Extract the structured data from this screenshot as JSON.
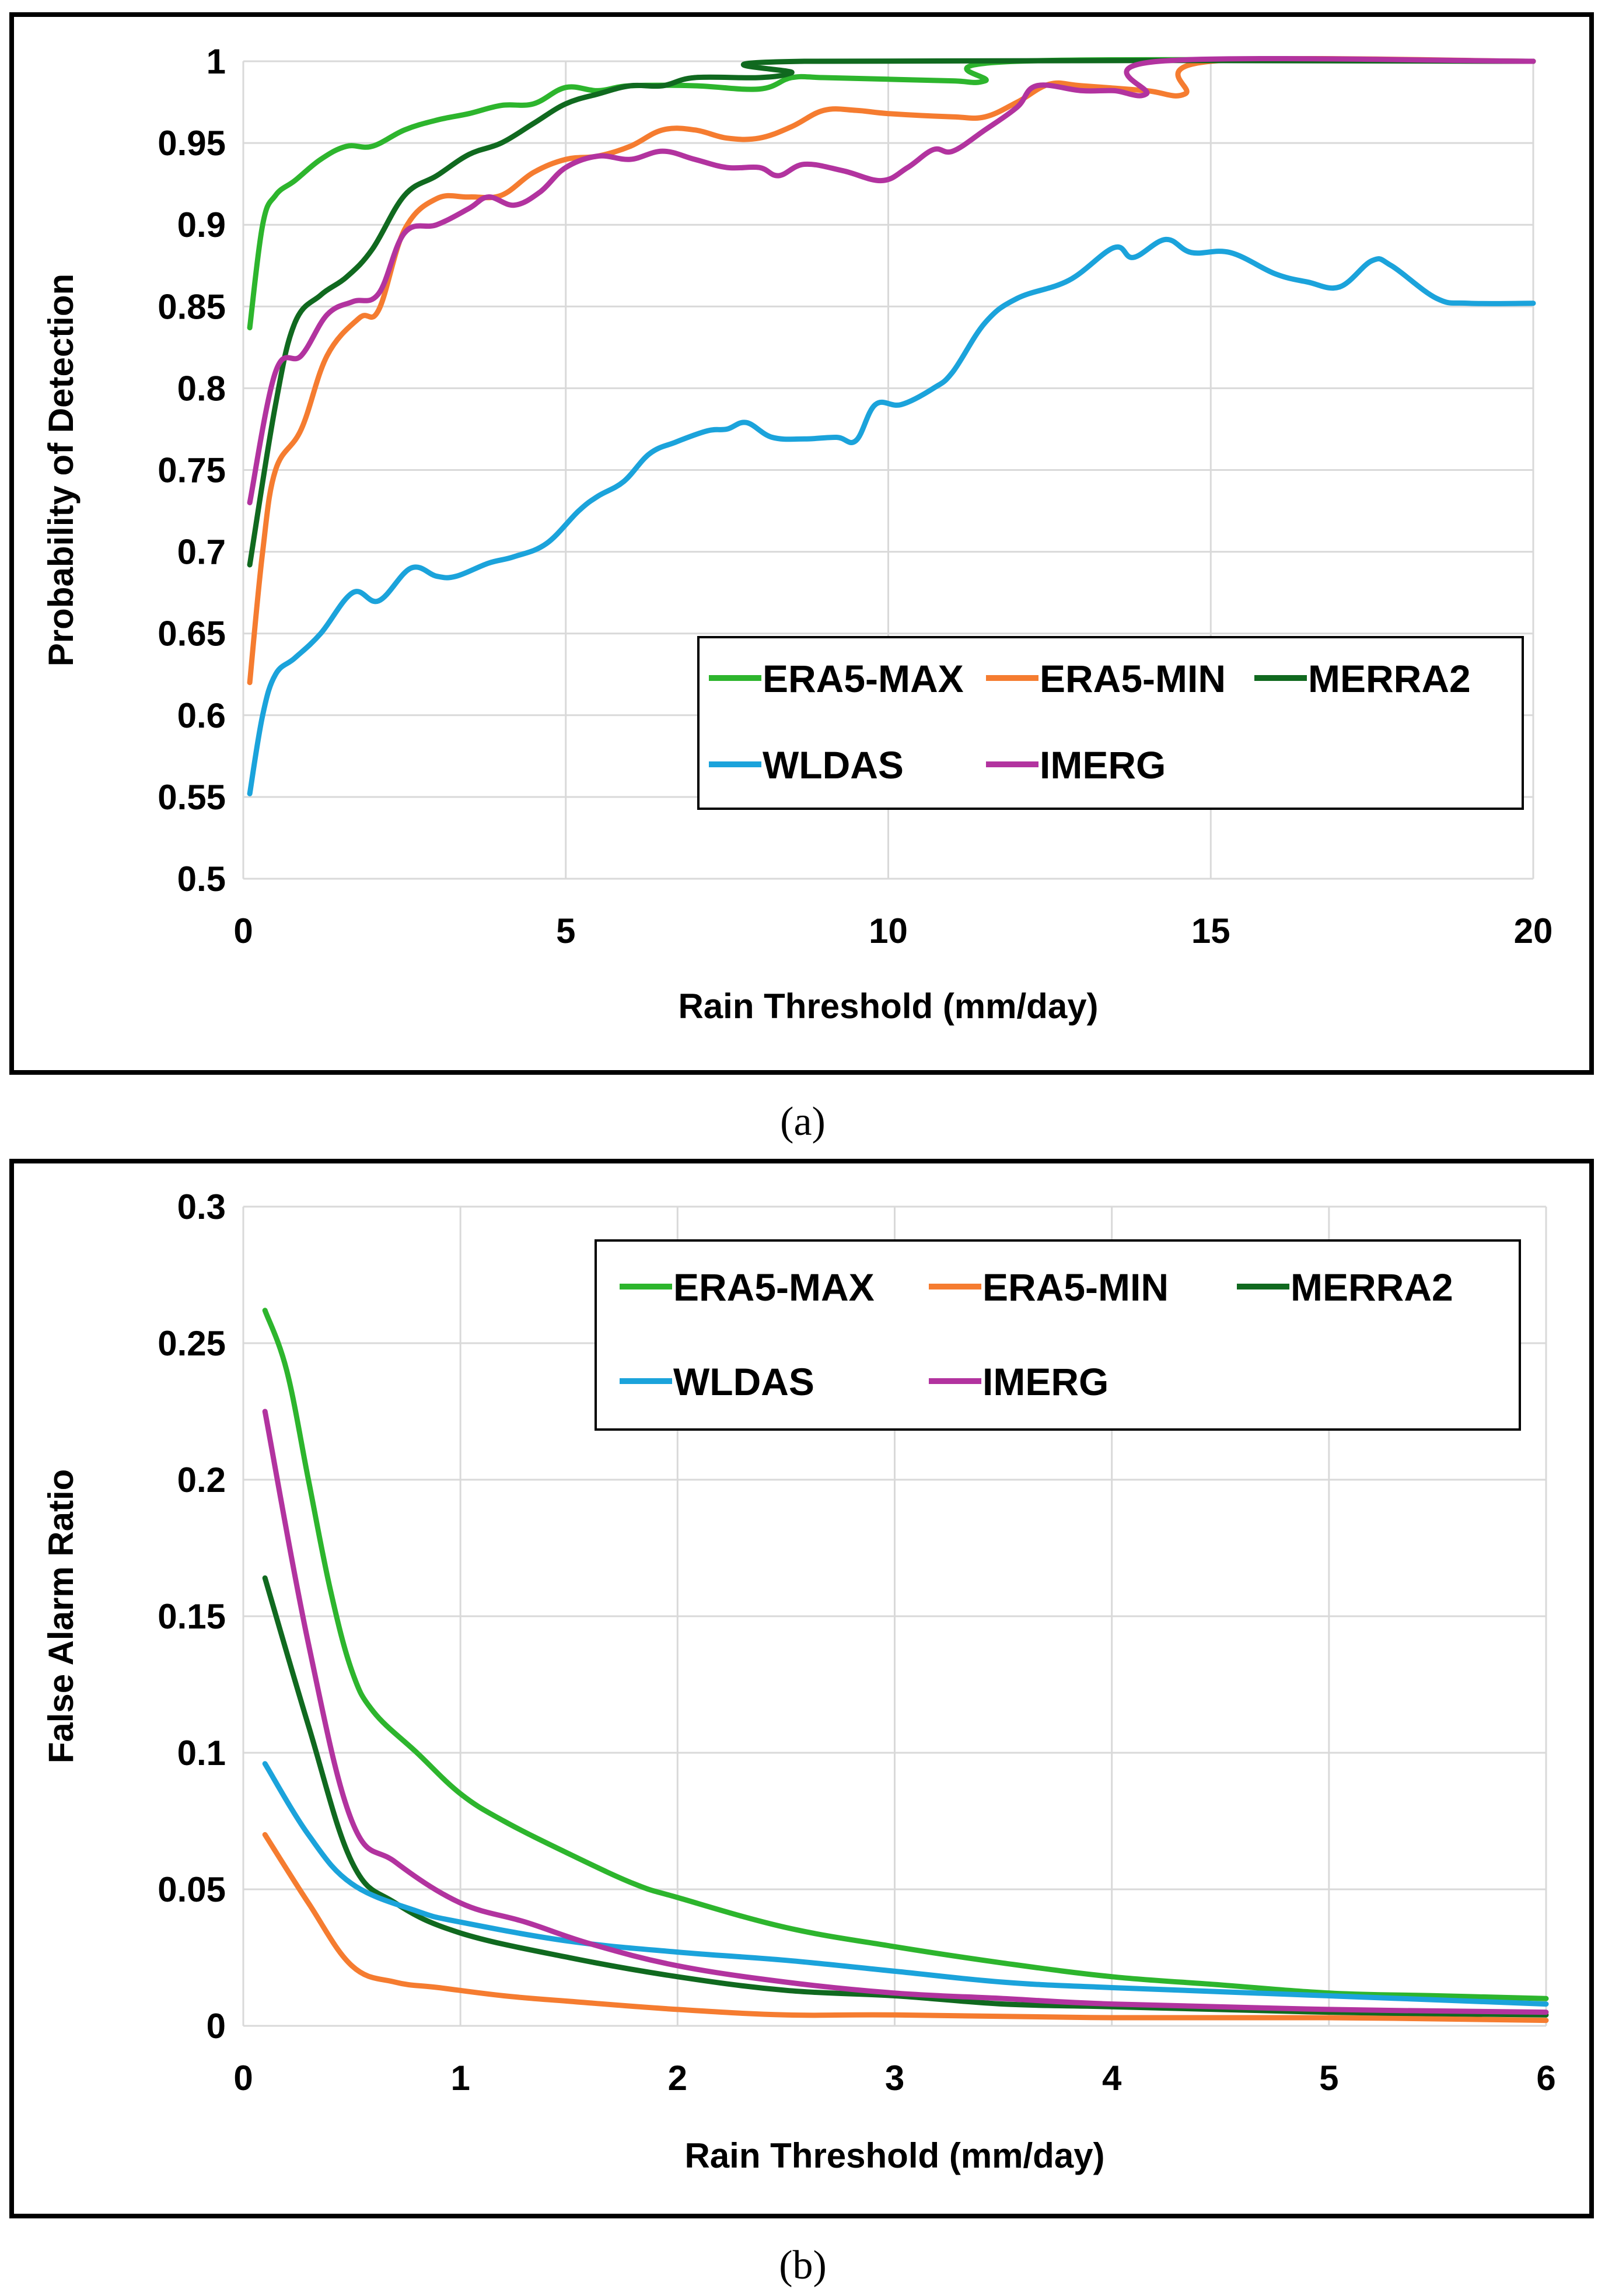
{
  "chart_data": [
    {
      "id": "a",
      "type": "line",
      "caption": "(a)",
      "title": "",
      "xlabel": "Rain Threshold (mm/day)",
      "ylabel": "Probability of Detection",
      "xlim": [
        0,
        20
      ],
      "ylim": [
        0.5,
        1
      ],
      "xticks": [
        "0",
        "5",
        "10",
        "15",
        "20"
      ],
      "xtick_values": [
        0,
        5,
        10,
        15,
        20
      ],
      "yticks": [
        "0.5",
        "0.55",
        "0.6",
        "0.65",
        "0.7",
        "0.75",
        "0.8",
        "0.85",
        "0.9",
        "0.95",
        "1"
      ],
      "ytick_values": [
        0.5,
        0.55,
        0.6,
        0.65,
        0.7,
        0.75,
        0.8,
        0.85,
        0.9,
        0.95,
        1
      ],
      "grid": true,
      "legend_position": "bottom-right",
      "series": [
        {
          "name": "ERA5-MAX",
          "color": "#2db52d",
          "points": [
            [
              0.1,
              0.837
            ],
            [
              0.3,
              0.9
            ],
            [
              0.5,
              0.918
            ],
            [
              0.8,
              0.927
            ],
            [
              1.2,
              0.94
            ],
            [
              1.6,
              0.948
            ],
            [
              2.0,
              0.948
            ],
            [
              2.5,
              0.958
            ],
            [
              3,
              0.964
            ],
            [
              3.5,
              0.968
            ],
            [
              4,
              0.973
            ],
            [
              4.5,
              0.974
            ],
            [
              5,
              0.984
            ],
            [
              5.5,
              0.982
            ],
            [
              6,
              0.985
            ],
            [
              7,
              0.985
            ],
            [
              8,
              0.983
            ],
            [
              8.5,
              0.99
            ],
            [
              9,
              0.99
            ],
            [
              10,
              0.989
            ],
            [
              11,
              0.988
            ],
            [
              11.5,
              0.988
            ],
            [
              12,
              1
            ],
            [
              20,
              1
            ]
          ]
        },
        {
          "name": "ERA5-MIN",
          "color": "#f57c30",
          "points": [
            [
              0.1,
              0.62
            ],
            [
              0.3,
              0.7
            ],
            [
              0.5,
              0.75
            ],
            [
              0.9,
              0.775
            ],
            [
              1.3,
              0.82
            ],
            [
              1.8,
              0.843
            ],
            [
              2.1,
              0.848
            ],
            [
              2.5,
              0.897
            ],
            [
              3,
              0.916
            ],
            [
              3.5,
              0.917
            ],
            [
              4,
              0.918
            ],
            [
              4.5,
              0.932
            ],
            [
              5,
              0.94
            ],
            [
              5.5,
              0.942
            ],
            [
              6,
              0.948
            ],
            [
              6.5,
              0.958
            ],
            [
              7,
              0.958
            ],
            [
              7.5,
              0.953
            ],
            [
              8,
              0.953
            ],
            [
              8.5,
              0.96
            ],
            [
              9,
              0.97
            ],
            [
              9.5,
              0.97
            ],
            [
              10,
              0.968
            ],
            [
              11,
              0.966
            ],
            [
              11.5,
              0.966
            ],
            [
              12,
              0.975
            ],
            [
              12.5,
              0.986
            ],
            [
              13,
              0.985
            ],
            [
              14,
              0.982
            ],
            [
              14.6,
              0.98
            ],
            [
              15,
              1
            ],
            [
              20,
              1
            ]
          ]
        },
        {
          "name": "MERRA2",
          "color": "#10691f",
          "points": [
            [
              0.1,
              0.692
            ],
            [
              0.5,
              0.79
            ],
            [
              0.8,
              0.84
            ],
            [
              1.2,
              0.857
            ],
            [
              1.6,
              0.868
            ],
            [
              2,
              0.885
            ],
            [
              2.5,
              0.918
            ],
            [
              3,
              0.93
            ],
            [
              3.5,
              0.943
            ],
            [
              4,
              0.95
            ],
            [
              4.5,
              0.962
            ],
            [
              5,
              0.974
            ],
            [
              5.5,
              0.98
            ],
            [
              6,
              0.985
            ],
            [
              6.5,
              0.985
            ],
            [
              7,
              0.99
            ],
            [
              8,
              0.99
            ],
            [
              8.5,
              0.993
            ],
            [
              8.7,
              1
            ],
            [
              20,
              1
            ]
          ]
        },
        {
          "name": "WLDAS",
          "color": "#1ba3db",
          "points": [
            [
              0.1,
              0.552
            ],
            [
              0.3,
              0.6
            ],
            [
              0.5,
              0.625
            ],
            [
              0.8,
              0.635
            ],
            [
              1.2,
              0.65
            ],
            [
              1.7,
              0.675
            ],
            [
              2.1,
              0.67
            ],
            [
              2.6,
              0.69
            ],
            [
              3,
              0.685
            ],
            [
              3.3,
              0.685
            ],
            [
              3.8,
              0.693
            ],
            [
              4.2,
              0.697
            ],
            [
              4.7,
              0.705
            ],
            [
              5.2,
              0.725
            ],
            [
              5.5,
              0.734
            ],
            [
              5.9,
              0.743
            ],
            [
              6.3,
              0.76
            ],
            [
              6.7,
              0.767
            ],
            [
              7.2,
              0.774
            ],
            [
              7.5,
              0.775
            ],
            [
              7.8,
              0.779
            ],
            [
              8.2,
              0.77
            ],
            [
              8.7,
              0.769
            ],
            [
              9.2,
              0.77
            ],
            [
              9.5,
              0.768
            ],
            [
              9.8,
              0.79
            ],
            [
              10.2,
              0.79
            ],
            [
              10.7,
              0.8
            ],
            [
              11,
              0.81
            ],
            [
              11.5,
              0.84
            ],
            [
              12,
              0.855
            ],
            [
              12.8,
              0.866
            ],
            [
              13.5,
              0.886
            ],
            [
              13.8,
              0.88
            ],
            [
              14.3,
              0.891
            ],
            [
              14.7,
              0.883
            ],
            [
              15.3,
              0.883
            ],
            [
              16,
              0.87
            ],
            [
              16.5,
              0.865
            ],
            [
              17,
              0.862
            ],
            [
              17.5,
              0.878
            ],
            [
              17.8,
              0.875
            ],
            [
              18.5,
              0.855
            ],
            [
              19,
              0.852
            ],
            [
              20,
              0.852
            ]
          ]
        },
        {
          "name": "IMERG",
          "color": "#b2339f",
          "points": [
            [
              0.1,
              0.73
            ],
            [
              0.5,
              0.81
            ],
            [
              0.9,
              0.82
            ],
            [
              1.3,
              0.845
            ],
            [
              1.7,
              0.853
            ],
            [
              2.1,
              0.858
            ],
            [
              2.5,
              0.895
            ],
            [
              3,
              0.9
            ],
            [
              3.5,
              0.91
            ],
            [
              3.8,
              0.917
            ],
            [
              4.2,
              0.912
            ],
            [
              4.6,
              0.92
            ],
            [
              5,
              0.935
            ],
            [
              5.5,
              0.942
            ],
            [
              6,
              0.94
            ],
            [
              6.5,
              0.945
            ],
            [
              7,
              0.94
            ],
            [
              7.5,
              0.935
            ],
            [
              8,
              0.935
            ],
            [
              8.3,
              0.93
            ],
            [
              8.7,
              0.937
            ],
            [
              9.3,
              0.933
            ],
            [
              9.9,
              0.927
            ],
            [
              10.3,
              0.935
            ],
            [
              10.7,
              0.946
            ],
            [
              11,
              0.945
            ],
            [
              11.5,
              0.958
            ],
            [
              12,
              0.972
            ],
            [
              12.3,
              0.985
            ],
            [
              13,
              0.982
            ],
            [
              13.5,
              0.982
            ],
            [
              14,
              0.98
            ],
            [
              14.2,
              1
            ],
            [
              20,
              1
            ]
          ]
        }
      ]
    },
    {
      "id": "b",
      "type": "line",
      "caption": "(b)",
      "title": "",
      "xlabel": "Rain Threshold (mm/day)",
      "ylabel": "False Alarm Ratio",
      "xlim": [
        0,
        6
      ],
      "ylim": [
        0,
        0.3
      ],
      "xticks": [
        "0",
        "1",
        "2",
        "3",
        "4",
        "5",
        "6"
      ],
      "xtick_values": [
        0,
        1,
        2,
        3,
        4,
        5,
        6
      ],
      "yticks": [
        "0",
        "0.05",
        "0.1",
        "0.15",
        "0.2",
        "0.25",
        "0.3"
      ],
      "ytick_values": [
        0,
        0.05,
        0.1,
        0.15,
        0.2,
        0.25,
        0.3
      ],
      "grid": true,
      "legend_position": "top-right",
      "series": [
        {
          "name": "ERA5-MAX",
          "color": "#2db52d",
          "points": [
            [
              0.1,
              0.262
            ],
            [
              0.2,
              0.24
            ],
            [
              0.3,
              0.2
            ],
            [
              0.4,
              0.16
            ],
            [
              0.5,
              0.13
            ],
            [
              0.6,
              0.115
            ],
            [
              0.8,
              0.1
            ],
            [
              1,
              0.085
            ],
            [
              1.2,
              0.075
            ],
            [
              1.5,
              0.063
            ],
            [
              1.8,
              0.052
            ],
            [
              2,
              0.047
            ],
            [
              2.5,
              0.036
            ],
            [
              3,
              0.029
            ],
            [
              3.5,
              0.023
            ],
            [
              4,
              0.018
            ],
            [
              4.5,
              0.015
            ],
            [
              5,
              0.012
            ],
            [
              5.5,
              0.011
            ],
            [
              6,
              0.01
            ]
          ]
        },
        {
          "name": "ERA5-MIN",
          "color": "#f57c30",
          "points": [
            [
              0.1,
              0.07
            ],
            [
              0.3,
              0.045
            ],
            [
              0.5,
              0.022
            ],
            [
              0.7,
              0.016
            ],
            [
              0.9,
              0.014
            ],
            [
              1.2,
              0.011
            ],
            [
              1.5,
              0.009
            ],
            [
              2,
              0.006
            ],
            [
              2.5,
              0.004
            ],
            [
              3,
              0.004
            ],
            [
              4,
              0.003
            ],
            [
              5,
              0.003
            ],
            [
              6,
              0.002
            ]
          ]
        },
        {
          "name": "MERRA2",
          "color": "#10691f",
          "points": [
            [
              0.1,
              0.164
            ],
            [
              0.3,
              0.11
            ],
            [
              0.5,
              0.06
            ],
            [
              0.7,
              0.045
            ],
            [
              1,
              0.034
            ],
            [
              1.5,
              0.025
            ],
            [
              2,
              0.018
            ],
            [
              2.5,
              0.013
            ],
            [
              3,
              0.011
            ],
            [
              3.5,
              0.008
            ],
            [
              4,
              0.007
            ],
            [
              5,
              0.005
            ],
            [
              6,
              0.004
            ]
          ]
        },
        {
          "name": "WLDAS",
          "color": "#1ba3db",
          "points": [
            [
              0.1,
              0.096
            ],
            [
              0.3,
              0.07
            ],
            [
              0.5,
              0.052
            ],
            [
              0.8,
              0.042
            ],
            [
              1,
              0.038
            ],
            [
              1.5,
              0.031
            ],
            [
              2,
              0.027
            ],
            [
              2.5,
              0.024
            ],
            [
              3,
              0.02
            ],
            [
              3.5,
              0.016
            ],
            [
              4,
              0.014
            ],
            [
              5,
              0.011
            ],
            [
              6,
              0.008
            ]
          ]
        },
        {
          "name": "IMERG",
          "color": "#b2339f",
          "points": [
            [
              0.1,
              0.225
            ],
            [
              0.3,
              0.14
            ],
            [
              0.5,
              0.075
            ],
            [
              0.7,
              0.06
            ],
            [
              1,
              0.045
            ],
            [
              1.3,
              0.038
            ],
            [
              1.6,
              0.03
            ],
            [
              2,
              0.022
            ],
            [
              2.5,
              0.016
            ],
            [
              3,
              0.012
            ],
            [
              3.5,
              0.01
            ],
            [
              4,
              0.008
            ],
            [
              5,
              0.006
            ],
            [
              6,
              0.005
            ]
          ]
        }
      ]
    }
  ]
}
